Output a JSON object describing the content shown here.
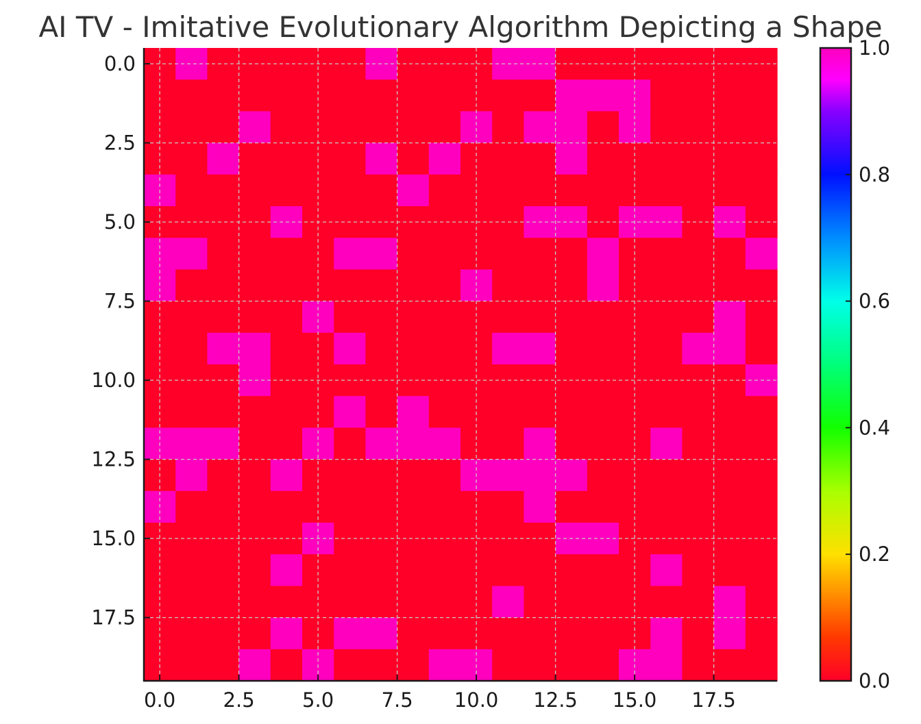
{
  "chart_data": {
    "type": "heatmap",
    "title": "AI TV - Imitative Evolutionary Algorithm Depicting a Shape",
    "xlabel": "",
    "ylabel": "",
    "xlim": [
      -0.5,
      19.5
    ],
    "ylim": [
      19.5,
      -0.5
    ],
    "x_ticks": [
      "0.0",
      "2.5",
      "5.0",
      "7.5",
      "10.0",
      "12.5",
      "15.0",
      "17.5"
    ],
    "y_ticks": [
      "0.0",
      "2.5",
      "5.0",
      "7.5",
      "10.0",
      "12.5",
      "15.0",
      "17.5"
    ],
    "grid": true,
    "colormap": "gist_rainbow",
    "colorbar": {
      "range": [
        0.0,
        1.0
      ],
      "ticks": [
        "0.0",
        "0.2",
        "0.4",
        "0.6",
        "0.8",
        "1.0"
      ]
    },
    "colors": {
      "low": "#ff0028",
      "high": "#ff00bf"
    },
    "values": [
      [
        0,
        1,
        0,
        0,
        0,
        0,
        0,
        1,
        0,
        0,
        0,
        1,
        1,
        0,
        0,
        0,
        0,
        0,
        0,
        0
      ],
      [
        0,
        0,
        0,
        0,
        0,
        0,
        0,
        0,
        0,
        0,
        0,
        0,
        0,
        1,
        1,
        1,
        0,
        0,
        0,
        0
      ],
      [
        0,
        0,
        0,
        1,
        0,
        0,
        0,
        0,
        0,
        0,
        1,
        0,
        1,
        1,
        0,
        1,
        0,
        0,
        0,
        0
      ],
      [
        0,
        0,
        1,
        0,
        0,
        0,
        0,
        1,
        0,
        1,
        0,
        0,
        0,
        1,
        0,
        0,
        0,
        0,
        0,
        0
      ],
      [
        1,
        0,
        0,
        0,
        0,
        0,
        0,
        0,
        1,
        0,
        0,
        0,
        0,
        0,
        0,
        0,
        0,
        0,
        0,
        0
      ],
      [
        0,
        0,
        0,
        0,
        1,
        0,
        0,
        0,
        0,
        0,
        0,
        0,
        1,
        1,
        0,
        1,
        1,
        0,
        1,
        0
      ],
      [
        1,
        1,
        0,
        0,
        0,
        0,
        1,
        1,
        0,
        0,
        0,
        0,
        0,
        0,
        1,
        0,
        0,
        0,
        0,
        1
      ],
      [
        1,
        0,
        0,
        0,
        0,
        0,
        0,
        0,
        0,
        0,
        1,
        0,
        0,
        0,
        1,
        0,
        0,
        0,
        0,
        0
      ],
      [
        0,
        0,
        0,
        0,
        0,
        1,
        0,
        0,
        0,
        0,
        0,
        0,
        0,
        0,
        0,
        0,
        0,
        0,
        1,
        0
      ],
      [
        0,
        0,
        1,
        1,
        0,
        0,
        1,
        0,
        0,
        0,
        0,
        1,
        1,
        0,
        0,
        0,
        0,
        1,
        1,
        0
      ],
      [
        0,
        0,
        0,
        1,
        0,
        0,
        0,
        0,
        0,
        0,
        0,
        0,
        0,
        0,
        0,
        0,
        0,
        0,
        0,
        1
      ],
      [
        0,
        0,
        0,
        0,
        0,
        0,
        1,
        0,
        1,
        0,
        0,
        0,
        0,
        0,
        0,
        0,
        0,
        0,
        0,
        0
      ],
      [
        1,
        1,
        1,
        0,
        0,
        1,
        0,
        1,
        1,
        1,
        0,
        0,
        1,
        0,
        0,
        0,
        1,
        0,
        0,
        0
      ],
      [
        0,
        1,
        0,
        0,
        1,
        0,
        0,
        0,
        0,
        0,
        1,
        1,
        1,
        1,
        0,
        0,
        0,
        0,
        0,
        0
      ],
      [
        1,
        0,
        0,
        0,
        0,
        0,
        0,
        0,
        0,
        0,
        0,
        0,
        1,
        0,
        0,
        0,
        0,
        0,
        0,
        0
      ],
      [
        0,
        0,
        0,
        0,
        0,
        1,
        0,
        0,
        0,
        0,
        0,
        0,
        0,
        1,
        1,
        0,
        0,
        0,
        0,
        0
      ],
      [
        0,
        0,
        0,
        0,
        1,
        0,
        0,
        0,
        0,
        0,
        0,
        0,
        0,
        0,
        0,
        0,
        1,
        0,
        0,
        0
      ],
      [
        0,
        0,
        0,
        0,
        0,
        0,
        0,
        0,
        0,
        0,
        0,
        1,
        0,
        0,
        0,
        0,
        0,
        0,
        1,
        0
      ],
      [
        0,
        0,
        0,
        0,
        1,
        0,
        1,
        1,
        0,
        0,
        0,
        0,
        0,
        0,
        0,
        0,
        1,
        0,
        1,
        0
      ],
      [
        0,
        0,
        0,
        1,
        0,
        1,
        0,
        0,
        0,
        1,
        1,
        0,
        0,
        0,
        0,
        1,
        1,
        0,
        0,
        0
      ]
    ]
  }
}
